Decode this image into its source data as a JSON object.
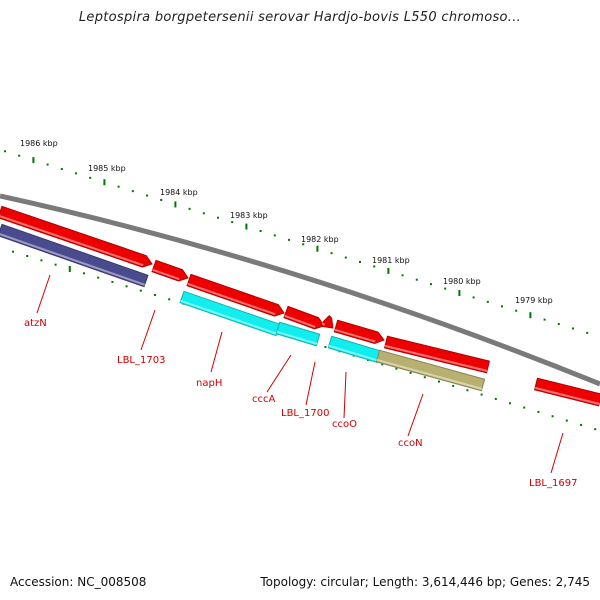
{
  "title": "Leptospira borgpetersenii serovar Hardjo-bovis L550 chromoso...",
  "footer": {
    "accession": "Accession: NC_008508",
    "topology": "Topology: circular; Length: 3,614,446 bp; Genes: 2,745"
  },
  "colors": {
    "backbone": "#7a7a7a",
    "forward_gene": "#ee0000",
    "reverse_gene": "#4a4a8e",
    "cyan_gene": "#12eeee",
    "olive_gene": "#b8b070",
    "tick": "#007700",
    "label": "#d00000"
  },
  "ruler_labels": [
    "1986 kbp",
    "1985 kbp",
    "1984 kbp",
    "1983 kbp",
    "1982 kbp",
    "1981 kbp",
    "1980 kbp",
    "1979 kbp"
  ],
  "gene_labels": [
    "atzN",
    "LBL_1703",
    "napH",
    "cccA",
    "LBL_1700",
    "ccoO",
    "ccoN",
    "LBL_1697"
  ]
}
